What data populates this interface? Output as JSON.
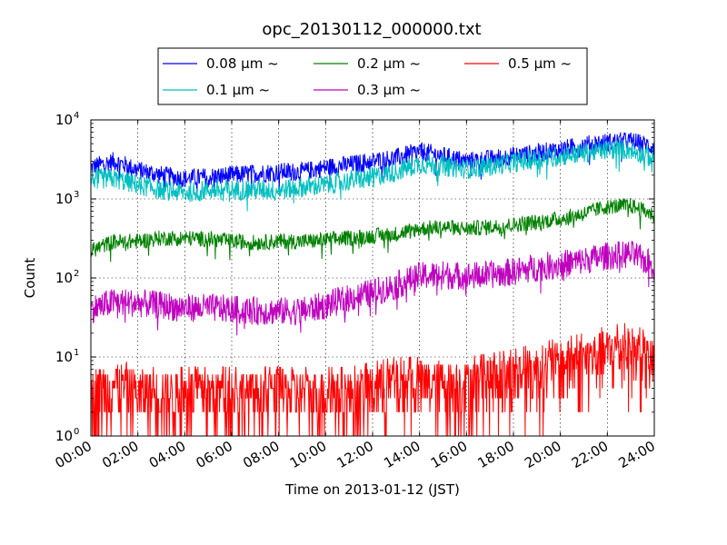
{
  "chart_data": {
    "type": "line",
    "title": "opc_20130112_000000.txt",
    "xlabel": "Time on 2013-01-12 (JST)",
    "ylabel": "Count",
    "x_range_hours": [
      0,
      24
    ],
    "x_ticks": [
      "00:00",
      "02:00",
      "04:00",
      "06:00",
      "08:00",
      "10:00",
      "12:00",
      "14:00",
      "16:00",
      "18:00",
      "20:00",
      "22:00",
      "24:00"
    ],
    "y_scale": "log",
    "ylim": [
      1,
      10000
    ],
    "y_ticks": [
      {
        "value": 1,
        "base": "10",
        "exp": "0"
      },
      {
        "value": 10,
        "base": "10",
        "exp": "1"
      },
      {
        "value": 100,
        "base": "10",
        "exp": "2"
      },
      {
        "value": 1000,
        "base": "10",
        "exp": "3"
      },
      {
        "value": 10000,
        "base": "10",
        "exp": "4"
      }
    ],
    "grid": true,
    "legend_position": "top-center",
    "x_hours": [
      0,
      1,
      2,
      3,
      4,
      5,
      6,
      7,
      8,
      9,
      10,
      11,
      12,
      13,
      14,
      15,
      16,
      17,
      18,
      19,
      20,
      21,
      22,
      23,
      24
    ],
    "series": [
      {
        "name": "0.08 μm ~",
        "color": "#0000ff",
        "values": [
          2500,
          3000,
          2300,
          2000,
          1800,
          1900,
          2000,
          2100,
          2200,
          2200,
          2500,
          2700,
          3000,
          3300,
          4000,
          3500,
          3000,
          3200,
          3500,
          3800,
          4200,
          4800,
          5200,
          5400,
          4500
        ]
      },
      {
        "name": "0.1 μm ~",
        "color": "#00bfbf",
        "values": [
          1800,
          1800,
          1500,
          1300,
          1200,
          1300,
          1300,
          1300,
          1300,
          1400,
          1500,
          1700,
          1900,
          2200,
          2800,
          2600,
          2400,
          2600,
          2900,
          3200,
          3500,
          3800,
          4200,
          4200,
          3200
        ]
      },
      {
        "name": "0.2 μm ~",
        "color": "#008000",
        "values": [
          220,
          290,
          290,
          320,
          320,
          310,
          290,
          280,
          290,
          290,
          300,
          320,
          340,
          360,
          420,
          440,
          420,
          440,
          470,
          510,
          560,
          650,
          800,
          820,
          620
        ]
      },
      {
        "name": "0.3 μm ~",
        "color": "#bf00bf",
        "values": [
          40,
          50,
          48,
          45,
          42,
          42,
          40,
          38,
          38,
          38,
          45,
          55,
          65,
          80,
          105,
          110,
          105,
          110,
          120,
          135,
          150,
          165,
          190,
          200,
          140
        ]
      },
      {
        "name": "0.5 μm ~",
        "color": "#ff0000",
        "values": [
          3,
          4,
          3,
          3,
          3,
          3,
          3,
          3,
          3,
          3,
          3,
          3,
          3.5,
          4,
          4,
          4,
          4,
          4.5,
          5,
          6,
          7,
          8,
          10,
          11,
          7
        ]
      }
    ]
  }
}
